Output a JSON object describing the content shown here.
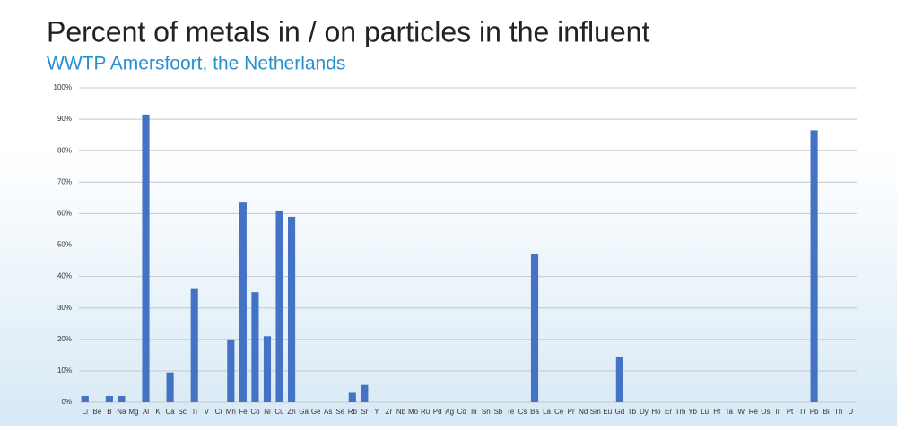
{
  "chart_data": {
    "type": "bar",
    "title": "Percent of metals in / on particles in the influent",
    "subtitle": "WWTP Amersfoort, the Netherlands",
    "categories": [
      "Li",
      "Be",
      "B",
      "Na",
      "Mg",
      "Al",
      "K",
      "Ca",
      "Sc",
      "Ti",
      "V",
      "Cr",
      "Mn",
      "Fe",
      "Co",
      "Ni",
      "Cu",
      "Zn",
      "Ga",
      "Ge",
      "As",
      "Se",
      "Rb",
      "Sr",
      "Y",
      "Zr",
      "Nb",
      "Mo",
      "Ru",
      "Pd",
      "Ag",
      "Cd",
      "In",
      "Sn",
      "Sb",
      "Te",
      "Cs",
      "Ba",
      "La",
      "Ce",
      "Pr",
      "Nd",
      "Sm",
      "Eu",
      "Gd",
      "Tb",
      "Dy",
      "Ho",
      "Er",
      "Tm",
      "Yb",
      "Lu",
      "Hf",
      "Ta",
      "W",
      "Re",
      "Os",
      "Ir",
      "Pt",
      "Tl",
      "Pb",
      "Bi",
      "Th",
      "U"
    ],
    "values": [
      2,
      0,
      2,
      2,
      0,
      91.5,
      0,
      9.5,
      0,
      36,
      0,
      0,
      20,
      63.5,
      35,
      21,
      61,
      59,
      0,
      0,
      0,
      0,
      3,
      5.5,
      0,
      0,
      0,
      0,
      0,
      0,
      0,
      0,
      0,
      0,
      0,
      0,
      0,
      47,
      0,
      0,
      0,
      0,
      0,
      0,
      14.5,
      0,
      0,
      0,
      0,
      0,
      0,
      0,
      0,
      0,
      0,
      0,
      0,
      0,
      0,
      0,
      86.5,
      0,
      0,
      0
    ],
    "color": "#4472c4",
    "ylim": [
      0,
      100
    ],
    "yticks": [
      {
        "value": 0,
        "label": "0%"
      },
      {
        "value": 10,
        "label": "10%"
      },
      {
        "value": 20,
        "label": "20%"
      },
      {
        "value": 30,
        "label": "30%"
      },
      {
        "value": 40,
        "label": "40%"
      },
      {
        "value": 50,
        "label": "50%"
      },
      {
        "value": 60,
        "label": "60%"
      },
      {
        "value": 70,
        "label": "70%"
      },
      {
        "value": 80,
        "label": "80%"
      },
      {
        "value": 90,
        "label": "90%"
      },
      {
        "value": 100,
        "label": "100%"
      }
    ],
    "grid": true
  }
}
